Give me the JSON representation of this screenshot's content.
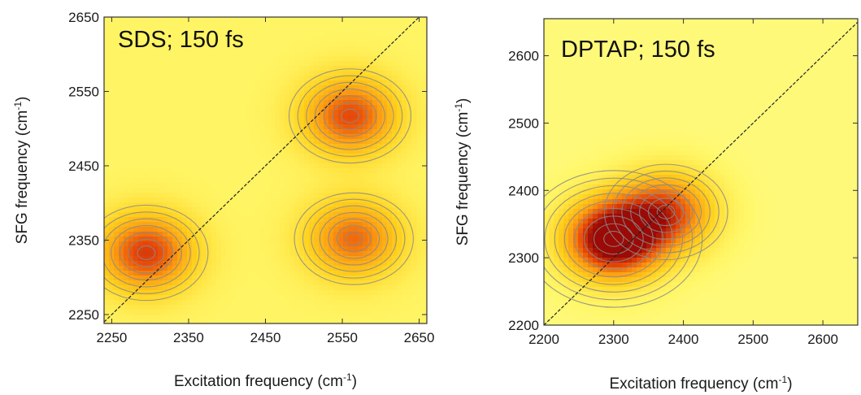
{
  "chart_data": [
    {
      "type": "heatmap",
      "title": "SDS; 150 fs",
      "xlabel": "Excitation frequency (cm-1)",
      "ylabel": "SFG frequency (cm-1)",
      "xlim": [
        2240,
        2660
      ],
      "ylim": [
        2238,
        2650
      ],
      "xticks": [
        2250,
        2350,
        2450,
        2550,
        2650
      ],
      "yticks": [
        2250,
        2350,
        2450,
        2550,
        2650
      ],
      "diagonal": true,
      "colormap": [
        "#ffffff",
        "#fff86b",
        "#ffd21e",
        "#fb9d12",
        "#e6480a",
        "#9b0a06"
      ],
      "peaks": [
        {
          "x": 2295,
          "y": 2333,
          "amplitude": 0.62
        },
        {
          "x": 2560,
          "y": 2517,
          "amplitude": 0.58
        },
        {
          "x": 2565,
          "y": 2352,
          "amplitude": 0.5
        }
      ]
    },
    {
      "type": "heatmap",
      "title": "DPTAP; 150 fs",
      "xlabel": "Excitation frequency (cm-1)",
      "ylabel": "SFG frequency (cm-1)",
      "xlim": [
        2200,
        2650
      ],
      "ylim": [
        2200,
        2655
      ],
      "xticks": [
        2200,
        2300,
        2400,
        2500,
        2600
      ],
      "yticks": [
        2200,
        2300,
        2400,
        2500,
        2600
      ],
      "diagonal": true,
      "colormap": [
        "#ffffff",
        "#fff86b",
        "#ffd21e",
        "#fb9d12",
        "#e6480a",
        "#9b0a06"
      ],
      "peaks": [
        {
          "x": 2300,
          "y": 2328,
          "amplitude": 1.0
        },
        {
          "x": 2375,
          "y": 2368,
          "amplitude": 0.62
        }
      ]
    }
  ]
}
